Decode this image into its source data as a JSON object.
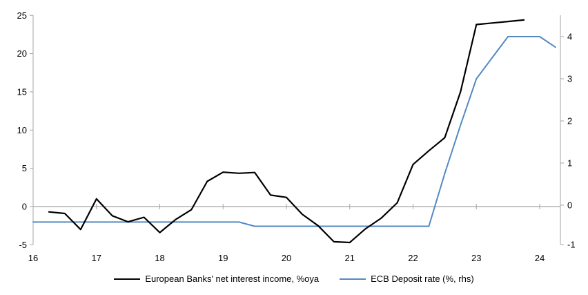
{
  "chart_data": {
    "type": "line",
    "title": "",
    "x_axis": {
      "ticks": [
        16,
        17,
        18,
        19,
        20,
        21,
        22,
        23,
        24
      ],
      "range": [
        16,
        24.33
      ]
    },
    "left_axis": {
      "ticks": [
        -5,
        0,
        5,
        10,
        15,
        20,
        25
      ],
      "range": [
        -5,
        25
      ],
      "position": "left"
    },
    "right_axis": {
      "ticks": [
        -1,
        0,
        1,
        2,
        3,
        4
      ],
      "range": [
        -1,
        4.5
      ],
      "position": "right"
    },
    "grid": "zero-line-only",
    "legend_position": "bottom-center",
    "series": [
      {
        "name": "European Banks' net interest income, %oya",
        "axis": "left",
        "color": "#000000",
        "width": 2.2,
        "x": [
          16.25,
          16.5,
          16.75,
          17.0,
          17.25,
          17.5,
          17.75,
          18.0,
          18.25,
          18.5,
          18.75,
          19.0,
          19.25,
          19.5,
          19.75,
          20.0,
          20.25,
          20.5,
          20.75,
          21.0,
          21.25,
          21.5,
          21.75,
          22.0,
          22.25,
          22.5,
          22.75,
          23.0,
          23.25,
          23.5,
          23.75
        ],
        "values": [
          -0.7,
          -0.9,
          -3.0,
          1.0,
          -1.2,
          -2.0,
          -1.4,
          -3.4,
          -1.7,
          -0.4,
          3.3,
          4.5,
          4.35,
          4.45,
          1.5,
          1.2,
          -1.0,
          -2.5,
          -4.6,
          -4.7,
          -2.9,
          -1.5,
          0.5,
          5.5,
          7.3,
          9.0,
          15.0,
          23.8,
          24.0,
          24.2,
          24.4
        ]
      },
      {
        "name": "ECB Deposit rate (%, rhs)",
        "axis": "right",
        "color": "#5389c2",
        "width": 2,
        "x": [
          16.0,
          16.25,
          16.5,
          16.75,
          17.0,
          17.25,
          17.5,
          17.75,
          18.0,
          18.25,
          18.5,
          18.75,
          19.0,
          19.25,
          19.5,
          19.75,
          20.0,
          20.25,
          20.5,
          20.75,
          21.0,
          21.25,
          21.5,
          21.75,
          22.0,
          22.25,
          22.5,
          22.75,
          23.0,
          23.25,
          23.5,
          23.75,
          24.0,
          24.25
        ],
        "values": [
          -0.4,
          -0.4,
          -0.4,
          -0.4,
          -0.4,
          -0.4,
          -0.4,
          -0.4,
          -0.4,
          -0.4,
          -0.4,
          -0.4,
          -0.4,
          -0.4,
          -0.5,
          -0.5,
          -0.5,
          -0.5,
          -0.5,
          -0.5,
          -0.5,
          -0.5,
          -0.5,
          -0.5,
          -0.5,
          -0.5,
          0.75,
          1.9,
          3.0,
          3.5,
          4.0,
          4.0,
          4.0,
          3.75
        ]
      }
    ],
    "style": {
      "axis_color": "#a6a6a6",
      "zero_line_color": "#a3a3a3",
      "text_color": "#000000",
      "background": "#ffffff",
      "tick_font_size": 13
    }
  }
}
